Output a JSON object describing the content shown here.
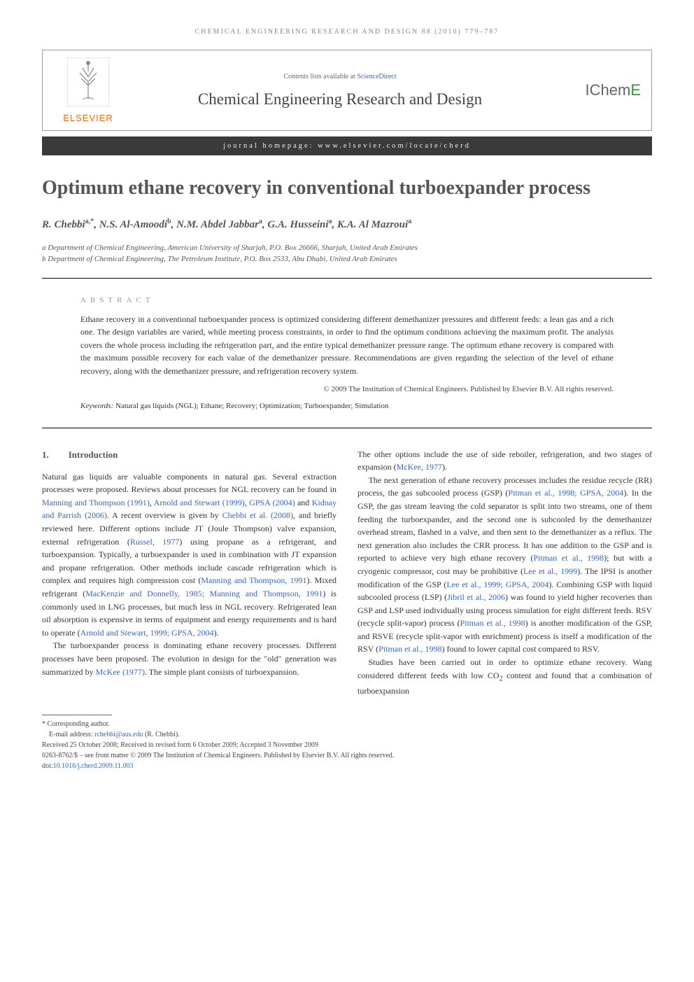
{
  "header": {
    "journal_line": "CHEMICAL ENGINEERING RESEARCH AND DESIGN 88 (2010) 779–787",
    "contents_prefix": "Contents lists available at ",
    "contents_link": "ScienceDirect",
    "journal_title": "Chemical Engineering Research and Design",
    "elsevier_label": "ELSEVIER",
    "icheme_prefix": "IChem",
    "icheme_suffix": "E",
    "homepage_label": "journal homepage: www.elsevier.com/locate/cherd"
  },
  "article": {
    "title": "Optimum ethane recovery in conventional turboexpander process",
    "authors_html": "R. Chebbi<sup>a,*</sup>, N.S. Al-Amoodi<sup>b</sup>, N.M. Abdel Jabbar<sup>a</sup>, G.A. Husseini<sup>a</sup>, K.A. Al Mazroui<sup>a</sup>",
    "affiliations": [
      "a Department of Chemical Engineering, American University of Sharjah, P.O. Box 26666, Sharjah, United Arab Emirates",
      "b Department of Chemical Engineering, The Petroleum Institute, P.O. Box 2533, Abu Dhabi, United Arab Emirates"
    ]
  },
  "abstract": {
    "label": "ABSTRACT",
    "text": "Ethane recovery in a conventional turboexpander process is optimized considering different demethanizer pressures and different feeds: a lean gas and a rich one. The design variables are varied, while meeting process constraints, in order to find the optimum conditions achieving the maximum profit. The analysis covers the whole process including the refrigeration part, and the entire typical demethanizer pressure range. The optimum ethane recovery is compared with the maximum possible recovery for each value of the demethanizer pressure. Recommendations are given regarding the selection of the level of ethane recovery, along with the demethanizer pressure, and refrigeration recovery system.",
    "copyright": "© 2009 The Institution of Chemical Engineers. Published by Elsevier B.V. All rights reserved.",
    "keywords_label": "Keywords:",
    "keywords": "Natural gas liquids (NGL); Ethane; Recovery; Optimization; Turboexpander; Simulation"
  },
  "section1": {
    "num": "1.",
    "title": "Introduction",
    "col1": {
      "p1_a": "Natural gas liquids are valuable components in natural gas. Several extraction processes were proposed. Reviews about processes for NGL recovery can be found in ",
      "r1": "Manning and Thompson (1991)",
      "p1_b": ", ",
      "r2": "Arnold and Stewart (1999)",
      "p1_c": ", ",
      "r3": "GPSA (2004)",
      "p1_d": " and ",
      "r4": "Kidnay and Parrish (2006)",
      "p1_e": ". A recent overview is given by ",
      "r5": "Chebbi et al. (2008)",
      "p1_f": ", and briefly reviewed here. Different options include JT (Joule Thompson) valve expansion, external refrigeration (",
      "r6": "Russel, 1977",
      "p1_g": ") using propane as a refrigerant, and turboexpansion. Typically, a turboexpander is used in combination with JT expansion and propane refrigeration. Other methods include cascade refrigeration which is complex and requires high compression cost (",
      "r7": "Manning and Thompson, 1991",
      "p1_h": "). Mixed refrigerant (",
      "r8": "MacKenzie and Donnelly, 1985; Manning and Thompson, 1991",
      "p1_i": ") is commonly used in LNG processes, but much less in NGL recovery. Refrigerated lean oil absorption is expensive in terms of equipment and energy requirements and is hard to operate (",
      "r9": "Arnold and Stewart, 1999; GPSA, 2004",
      "p1_j": ").",
      "p2_a": "The turboexpander process is dominating ethane recovery processes. Different processes have been proposed. The evolution in design for the \"old\" generation was summarized by ",
      "r10": "McKee (1977)",
      "p2_b": ". The simple plant consists of turboexpansion."
    },
    "col2": {
      "p1_a": "The other options include the use of side reboiler, refrigeration, and two stages of expansion (",
      "r1": "McKee, 1977",
      "p1_b": ").",
      "p2_a": "The next generation of ethane recovery processes includes the residue recycle (RR) process, the gas subcooled process (GSP) (",
      "r2": "Pitman et al., 1998; GPSA, 2004",
      "p2_b": "). In the GSP, the gas stream leaving the cold separator is split into two streams, one of them feeding the turboexpander, and the second one is subcooled by the demethanizer overhead stream, flashed in a valve, and then sent to the demethanizer as a reflux. The next generation also includes the CRR process. It has one addition to the GSP and is reported to achieve very high ethane recovery (",
      "r3": "Pitman et al., 1998",
      "p2_c": "); but with a cryogenic compressor, cost may be prohibitive (",
      "r4": "Lee et al., 1999",
      "p2_d": "). The IPSI is another modification of the GSP (",
      "r5": "Lee et al., 1999; GPSA, 2004",
      "p2_e": "). Combining GSP with liquid subcooled process (LSP) (",
      "r6": "Jibril et al., 2006",
      "p2_f": ") was found to yield higher recoveries than GSP and LSP used individually using process simulation for eight different feeds. RSV (recycle split-vapor) process (",
      "r7": "Pitman et al., 1998",
      "p2_g": ") is another modification of the GSP, and RSVE (recycle split-vapor with enrichment) process is itself a modification of the RSV (",
      "r8": "Pitman et al., 1998",
      "p2_h": ") found to lower capital cost compared to RSV.",
      "p3_a": "Studies have been carried out in order to optimize ethane recovery. Wang considered different feeds with low CO",
      "p3_sub": "2",
      "p3_b": " content and found that a combination of turboexpansion"
    }
  },
  "footnotes": {
    "corresponding": "* Corresponding author.",
    "email_label": "E-mail address: ",
    "email": "rchebbi@aus.edu",
    "email_suffix": " (R. Chebbi).",
    "received": "Received 25 October 2008; Received in revised form 6 October 2009; Accepted 3 November 2009",
    "issn": "0263-8762/$ – see front matter © 2009 The Institution of Chemical Engineers. Published by Elsevier B.V. All rights reserved.",
    "doi_label": "doi:",
    "doi": "10.1016/j.cherd.2009.11.003"
  },
  "colors": {
    "link": "#3366cc",
    "elsevier_orange": "#ff6600",
    "icheme_green": "#2aa02a",
    "header_bar": "#3a3a3a",
    "heading_gray": "#555555"
  }
}
